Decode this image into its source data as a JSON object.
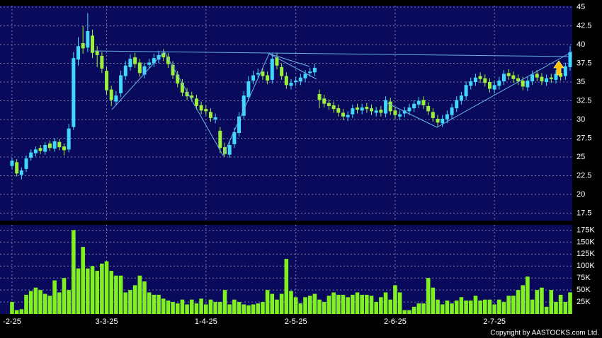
{
  "chart_data": {
    "type": "candlestick",
    "categories": [
      "-2-25",
      null,
      null,
      null,
      null,
      null,
      null,
      null,
      null,
      null,
      null,
      null,
      null,
      null,
      null,
      null,
      null,
      null,
      null,
      null,
      "3-3-25",
      null,
      null,
      null,
      null,
      null,
      null,
      null,
      null,
      null,
      null,
      null,
      null,
      null,
      null,
      null,
      null,
      null,
      null,
      null,
      null,
      "1-4-25",
      null,
      null,
      null,
      null,
      null,
      null,
      null,
      null,
      null,
      null,
      null,
      null,
      null,
      null,
      null,
      null,
      null,
      null,
      "2-5-25",
      null,
      null,
      null,
      null,
      null,
      null,
      null,
      null,
      null,
      null,
      null,
      null,
      null,
      null,
      null,
      null,
      null,
      null,
      null,
      null,
      "2-6-25",
      null,
      null,
      null,
      null,
      null,
      null,
      null,
      null,
      null,
      null,
      null,
      null,
      null,
      null,
      null,
      null,
      null,
      null,
      null,
      null,
      "2-7-25",
      null,
      null,
      null,
      null,
      null,
      null,
      null,
      null,
      null,
      null,
      null,
      null,
      null,
      null,
      null,
      null
    ],
    "open": [
      23.8,
      24.3,
      22.6,
      23.4,
      24.9,
      25.5,
      26.2,
      25.7,
      26.8,
      26.1,
      27.0,
      26.4,
      26.0,
      29.0,
      38.0,
      40.2,
      39.6,
      41.2,
      39.2,
      38.5,
      36.5,
      34.0,
      32.4,
      33.5,
      35.8,
      37.0,
      38.3,
      37.6,
      36.0,
      37.3,
      37.5,
      38.0,
      38.9,
      38.4,
      37.3,
      36.0,
      34.9,
      33.7,
      33.2,
      32.8,
      31.9,
      31.4,
      31.0,
      30.0,
      28.5,
      26.3,
      25.3,
      26.7,
      28.2,
      30.5,
      33.0,
      35.2,
      36.0,
      36.4,
      35.9,
      35.3,
      38.3,
      37.0,
      35.8,
      34.5,
      35.0,
      35.1,
      35.5,
      36.2,
      36.3,
      33.4,
      32.8,
      32.2,
      31.9,
      31.5,
      30.9,
      30.3,
      30.7,
      31.6,
      31.2,
      31.7,
      31.5,
      30.9,
      31.3,
      30.8,
      32.4,
      31.2,
      30.4,
      30.8,
      31.1,
      31.5,
      32.0,
      32.6,
      31.8,
      31.0,
      30.1,
      29.5,
      30.0,
      30.6,
      31.5,
      32.5,
      33.1,
      34.5,
      35.0,
      35.8,
      35.5,
      35.0,
      34.0,
      34.5,
      35.1,
      36.2,
      35.9,
      35.5,
      35.2,
      34.3,
      35.1,
      36.1,
      35.7,
      35.0,
      35.6,
      35.3,
      36.2,
      35.8,
      37.0
    ],
    "high": [
      24.9,
      24.7,
      23.6,
      25.2,
      26.0,
      26.4,
      26.6,
      27.0,
      27.2,
      27.5,
      27.4,
      26.8,
      29.4,
      39.0,
      41.0,
      42.5,
      44.2,
      42.0,
      39.8,
      39.0,
      37.0,
      34.5,
      33.8,
      36.5,
      37.8,
      38.7,
      38.9,
      38.1,
      37.6,
      38.1,
      38.8,
      39.2,
      39.4,
      38.9,
      37.8,
      36.5,
      35.4,
      34.2,
      33.7,
      33.3,
      32.4,
      31.9,
      31.5,
      30.8,
      29.0,
      26.9,
      27.2,
      28.9,
      31.0,
      33.8,
      35.8,
      36.5,
      36.8,
      36.9,
      36.4,
      38.8,
      38.9,
      37.5,
      36.3,
      35.4,
      35.7,
      36.1,
      36.6,
      36.9,
      37.4,
      34.0,
      33.3,
      32.7,
      32.4,
      32.0,
      31.4,
      31.1,
      32.0,
      32.1,
      32.1,
      32.2,
      32.0,
      31.7,
      31.8,
      33.1,
      32.9,
      31.7,
      31.2,
      31.7,
      32.1,
      32.6,
      33.0,
      33.1,
      32.3,
      31.5,
      30.6,
      30.6,
      31.2,
      32.1,
      33.1,
      33.7,
      35.1,
      35.6,
      36.1,
      36.3,
      36.0,
      35.5,
      35.1,
      35.7,
      36.6,
      36.7,
      36.4,
      36.0,
      35.7,
      35.7,
      36.5,
      36.6,
      36.2,
      36.0,
      36.1,
      36.6,
      36.7,
      37.6,
      39.8
    ],
    "low": [
      23.4,
      22.4,
      22.0,
      23.0,
      24.5,
      25.1,
      25.4,
      25.3,
      25.8,
      25.7,
      25.9,
      25.2,
      25.6,
      28.6,
      37.2,
      38.8,
      39.0,
      38.2,
      37.0,
      36.2,
      33.3,
      31.8,
      31.9,
      33.0,
      35.3,
      36.5,
      36.9,
      35.7,
      35.5,
      36.8,
      37.0,
      37.5,
      37.8,
      36.9,
      35.4,
      34.3,
      33.1,
      32.6,
      32.4,
      31.3,
      30.7,
      30.6,
      29.7,
      29.5,
      25.5,
      25.0,
      24.9,
      26.2,
      27.7,
      30.0,
      32.5,
      34.7,
      35.5,
      35.3,
      34.7,
      34.8,
      36.7,
      35.3,
      34.1,
      34.0,
      34.5,
      34.6,
      35.0,
      35.7,
      35.8,
      31.5,
      31.6,
      31.3,
      30.9,
      30.4,
      29.9,
      29.8,
      30.2,
      30.8,
      30.7,
      30.9,
      30.6,
      30.4,
      30.4,
      30.3,
      30.6,
      30.1,
      29.9,
      30.3,
      30.6,
      31.0,
      31.5,
      31.4,
      30.6,
      29.7,
      29.1,
      29.0,
      29.5,
      30.1,
      31.0,
      32.0,
      32.6,
      34.0,
      34.5,
      34.9,
      34.4,
      33.6,
      33.5,
      34.0,
      34.6,
      35.3,
      34.9,
      34.6,
      33.9,
      33.8,
      34.6,
      35.1,
      34.6,
      34.5,
      34.9,
      34.8,
      35.2,
      35.3,
      36.5
    ],
    "close": [
      24.5,
      22.8,
      23.2,
      24.8,
      25.6,
      26.0,
      25.8,
      26.6,
      26.2,
      27.1,
      26.3,
      25.9,
      28.8,
      38.2,
      39.8,
      39.5,
      41.8,
      38.9,
      38.6,
      36.8,
      33.9,
      32.6,
      33.2,
      35.9,
      37.2,
      38.1,
      37.4,
      36.2,
      37.1,
      37.6,
      38.2,
      38.6,
      38.3,
      37.4,
      35.9,
      34.8,
      33.6,
      33.1,
      32.9,
      31.8,
      31.2,
      31.1,
      30.2,
      30.3,
      26.2,
      25.4,
      26.6,
      28.3,
      30.4,
      33.2,
      35.1,
      35.9,
      36.2,
      35.8,
      35.2,
      38.1,
      37.2,
      35.8,
      34.6,
      34.9,
      35.2,
      35.6,
      36.1,
      36.4,
      36.9,
      32.6,
      32.1,
      31.8,
      31.4,
      30.9,
      30.4,
      30.6,
      31.5,
      31.3,
      31.6,
      31.4,
      31.1,
      31.2,
      30.9,
      32.6,
      31.1,
      30.6,
      30.7,
      31.2,
      31.6,
      32.1,
      32.5,
      31.9,
      31.1,
      30.2,
      29.6,
      30.1,
      30.7,
      31.6,
      32.6,
      33.2,
      34.6,
      35.1,
      35.6,
      35.4,
      34.9,
      34.1,
      34.6,
      35.2,
      36.1,
      35.8,
      35.4,
      35.1,
      34.4,
      35.2,
      36.0,
      35.6,
      35.1,
      35.5,
      35.4,
      36.1,
      35.7,
      37.1,
      39.0
    ],
    "volume": [
      25000,
      8000,
      10000,
      40000,
      48000,
      55000,
      50000,
      42000,
      38000,
      70000,
      45000,
      75000,
      50000,
      175000,
      95000,
      140000,
      95000,
      100000,
      90000,
      105000,
      110000,
      90000,
      80000,
      80000,
      45000,
      50000,
      60000,
      80000,
      68000,
      45000,
      40000,
      40000,
      32000,
      28000,
      25000,
      22000,
      30000,
      20000,
      30000,
      22000,
      32000,
      20000,
      30000,
      25000,
      25000,
      50000,
      20000,
      30000,
      25000,
      20000,
      18000,
      20000,
      22000,
      25000,
      50000,
      42000,
      30000,
      42000,
      115000,
      48000,
      35000,
      22000,
      35000,
      38000,
      42000,
      30000,
      25000,
      38000,
      45000,
      40000,
      40000,
      35000,
      40000,
      45000,
      40000,
      40000,
      38000,
      25000,
      35000,
      45000,
      30000,
      60000,
      45000,
      8000,
      8000,
      15000,
      22000,
      22000,
      75000,
      55000,
      30000,
      20000,
      28000,
      22000,
      28000,
      35000,
      28000,
      28000,
      38000,
      28000,
      30000,
      30000,
      20000,
      30000,
      25000,
      38000,
      38000,
      50000,
      60000,
      78000,
      30000,
      50000,
      55000,
      15000,
      50000,
      25000,
      40000,
      25000,
      45000
    ],
    "ylim": [
      16.5,
      45.2
    ],
    "yticks": [
      17.5,
      20,
      22.5,
      25,
      27.5,
      30,
      32.5,
      35,
      37.5,
      40,
      42.5,
      45
    ],
    "volume_ylim": [
      0,
      186000
    ],
    "volume_ticks": [
      {
        "value": 25000,
        "label": "25K"
      },
      {
        "value": 50000,
        "label": "50K"
      },
      {
        "value": 75000,
        "label": "75K"
      },
      {
        "value": 100000,
        "label": "100K"
      },
      {
        "value": 125000,
        "label": "125K"
      },
      {
        "value": 150000,
        "label": "150K"
      },
      {
        "value": 175000,
        "label": "175K"
      }
    ],
    "up_color": "#40d8ff",
    "down_color": "#9cf03c",
    "volume_color": "#80f020",
    "grid": true
  },
  "copyright": "Copyright by AASTOCKS.com Ltd."
}
